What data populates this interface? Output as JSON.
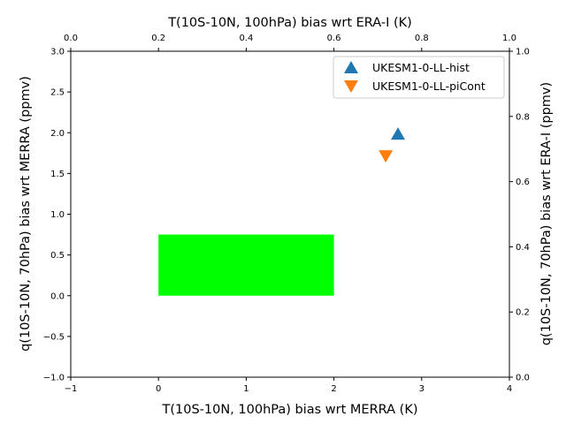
{
  "chart_data": {
    "type": "scatter",
    "title": "T(10S-10N, 100hPa) bias wrt ERA-I (K)",
    "xlabel": "T(10S-10N, 100hPa) bias wrt MERRA (K)",
    "ylabel": "q(10S-10N, 70hPa) bias wrt MERRA (ppmv)",
    "y2label": "q(10S-10N, 70hPa) bias wrt ERA-I (ppmv)",
    "xlim": [
      -1,
      4
    ],
    "ylim": [
      -1.0,
      3.0
    ],
    "x2lim": [
      0.0,
      1.0
    ],
    "y2lim": [
      0.0,
      1.0
    ],
    "x_ticks": [
      "−1",
      "0",
      "1",
      "2",
      "3",
      "4"
    ],
    "y_ticks": [
      "−1.0",
      "−0.5",
      "0.0",
      "0.5",
      "1.0",
      "1.5",
      "2.0",
      "2.5",
      "3.0"
    ],
    "x2_ticks": [
      "0.0",
      "0.2",
      "0.4",
      "0.6",
      "0.8",
      "1.0"
    ],
    "y2_ticks": [
      "0.0",
      "0.2",
      "0.4",
      "0.6",
      "0.8",
      "1.0"
    ],
    "observational_box": {
      "x": [
        0,
        2
      ],
      "y": [
        0.0,
        0.75
      ],
      "color": "#00ff00"
    },
    "legend_position": "top-right",
    "series": [
      {
        "name": "UKESM1-0-LL-hist",
        "marker": "triangle-up",
        "color": "#1f77b4",
        "x": [
          2.73
        ],
        "y": [
          1.98
        ]
      },
      {
        "name": "UKESM1-0-LL-piCont",
        "marker": "triangle-down",
        "color": "#ff7f0e",
        "x": [
          2.59
        ],
        "y": [
          1.72
        ]
      }
    ]
  }
}
